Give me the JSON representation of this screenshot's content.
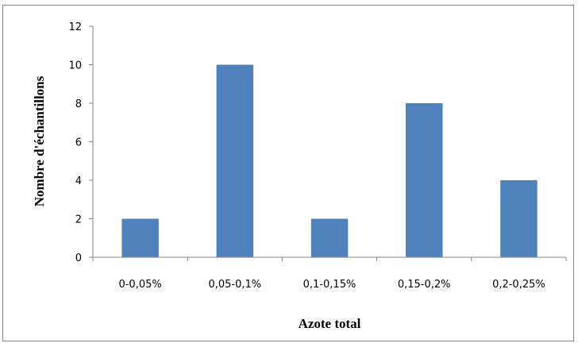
{
  "chart_data": {
    "type": "bar",
    "title": "",
    "xlabel": "Azote total",
    "ylabel": "Nombre d'échantillons",
    "categories": [
      "0-0,05%",
      "0,05-0,1%",
      "0,1-0,15%",
      "0,15-0,2%",
      "0,2-0,25%"
    ],
    "values": [
      2,
      10,
      2,
      8,
      4
    ],
    "ylim": [
      0,
      12
    ],
    "yticks": [
      0,
      2,
      4,
      6,
      8,
      10,
      12
    ],
    "grid": false,
    "legend": "none",
    "bar_color": "#4F81BD"
  }
}
